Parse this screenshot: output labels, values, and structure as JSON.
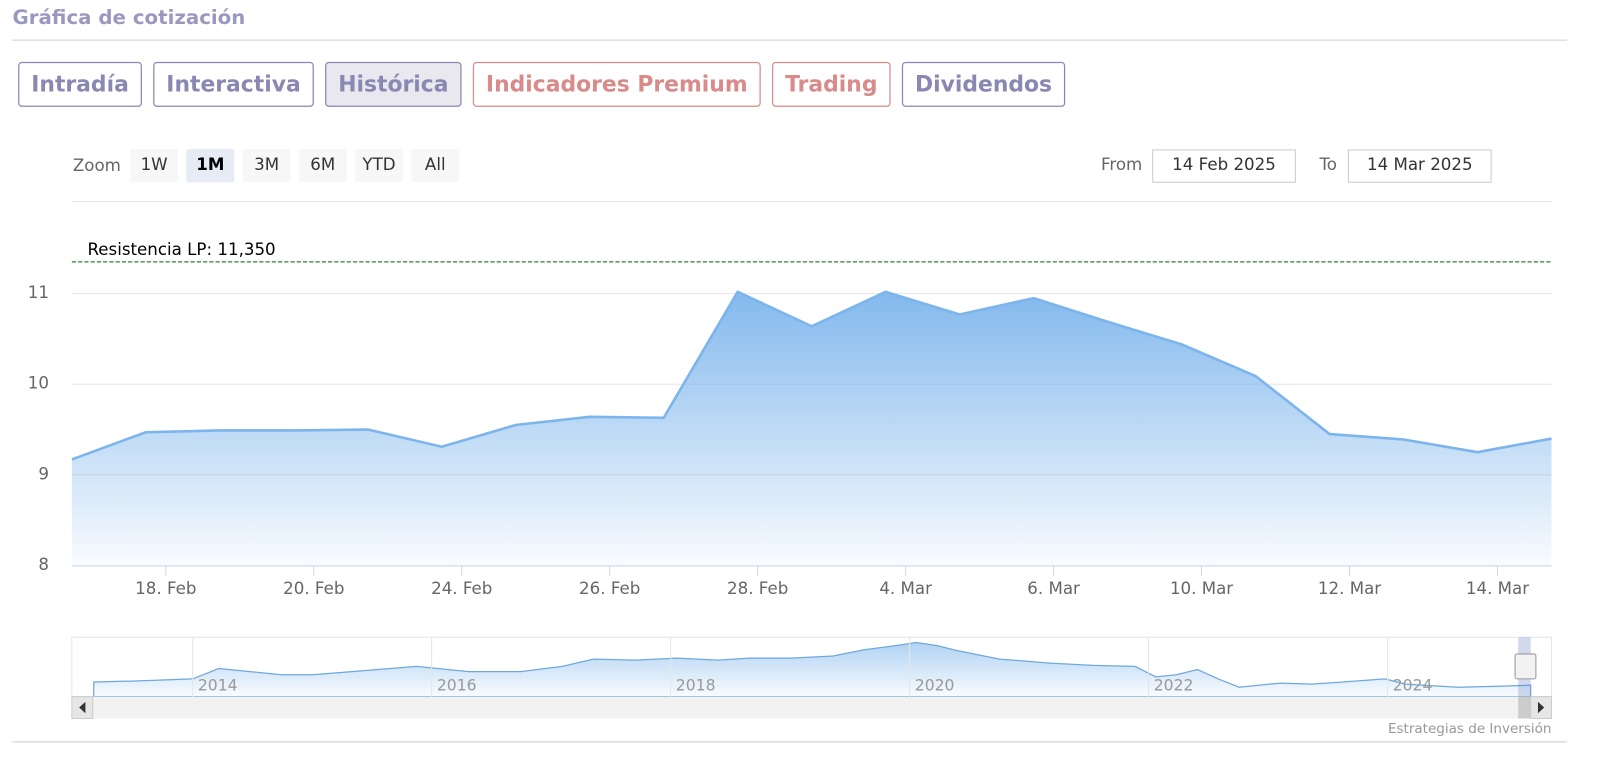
{
  "header": {
    "title": "Gráfica de cotización"
  },
  "tabs": [
    {
      "label": "Intradía",
      "color": "#8a87b3",
      "active": false
    },
    {
      "label": "Interactiva",
      "color": "#8a87b3",
      "active": false
    },
    {
      "label": "Histórica",
      "color": "#8a87b3",
      "active": true
    },
    {
      "label": "Indicadores Premium",
      "color": "#d98a8a",
      "active": false
    },
    {
      "label": "Trading",
      "color": "#d98a8a",
      "active": false
    },
    {
      "label": "Dividendos",
      "color": "#8a87b3",
      "active": false
    }
  ],
  "zoom": {
    "label": "Zoom",
    "buttons": [
      "1W",
      "1M",
      "3M",
      "6M",
      "YTD",
      "All"
    ],
    "selected": 1
  },
  "range": {
    "from_label": "From",
    "from": "14 Feb 2025",
    "to_label": "To",
    "to": "14 Mar 2025"
  },
  "chart_data": {
    "type": "area",
    "x": [
      "2025-02-14",
      "2025-02-17",
      "2025-02-18",
      "2025-02-19",
      "2025-02-20",
      "2025-02-21",
      "2025-02-24",
      "2025-02-25",
      "2025-02-26",
      "2025-02-27",
      "2025-02-28",
      "2025-03-03",
      "2025-03-04",
      "2025-03-05",
      "2025-03-06",
      "2025-03-07",
      "2025-03-10",
      "2025-03-11",
      "2025-03-12",
      "2025-03-13",
      "2025-03-14"
    ],
    "values": [
      9.17,
      9.47,
      9.49,
      9.49,
      9.5,
      9.31,
      9.55,
      9.64,
      9.63,
      11.02,
      10.64,
      11.02,
      10.77,
      10.95,
      10.69,
      10.44,
      10.09,
      9.45,
      9.39,
      9.25,
      9.4
    ],
    "color": "#7cb5ec",
    "ylim": [
      8,
      12
    ],
    "yticks": [
      8,
      9,
      10,
      11
    ],
    "xticks": [
      {
        "value": "2025-02-18",
        "label": "18. Feb"
      },
      {
        "value": "2025-02-20",
        "label": "20. Feb"
      },
      {
        "value": "2025-02-24",
        "label": "24. Feb"
      },
      {
        "value": "2025-02-26",
        "label": "26. Feb"
      },
      {
        "value": "2025-02-28",
        "label": "28. Feb"
      },
      {
        "value": "2025-03-04",
        "label": "4. Mar"
      },
      {
        "value": "2025-03-06",
        "label": "6. Mar"
      },
      {
        "value": "2025-03-10",
        "label": "10. Mar"
      },
      {
        "value": "2025-03-12",
        "label": "12. Mar"
      },
      {
        "value": "2025-03-14",
        "label": "14. Mar"
      }
    ],
    "grid": true,
    "annotations": [
      {
        "value": 11.35,
        "label": "Resistencia LP: 11,350",
        "color": "#2e7d32"
      }
    ]
  },
  "navigator": {
    "labels": [
      "2014",
      "2016",
      "2018",
      "2020",
      "2022",
      "2024"
    ]
  },
  "credit": "Estrategias de Inversión"
}
